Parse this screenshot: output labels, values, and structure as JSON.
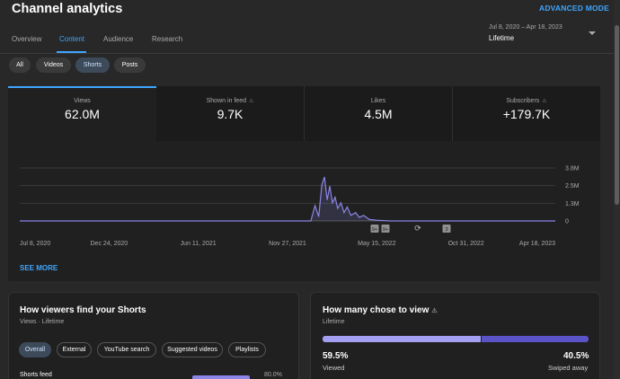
{
  "header": {
    "title": "Channel analytics",
    "advanced_mode": "ADVANCED MODE"
  },
  "tabs": [
    {
      "label": "Overview"
    },
    {
      "label": "Content"
    },
    {
      "label": "Research"
    },
    {
      "label": "Audience"
    }
  ],
  "active_tab": "Content",
  "date_range": {
    "dates": "Jul 8, 2020 – Apr 18, 2023",
    "label": "Lifetime"
  },
  "content_filters": [
    {
      "label": "All"
    },
    {
      "label": "Videos"
    },
    {
      "label": "Shorts"
    },
    {
      "label": "Posts"
    }
  ],
  "active_filter": "Shorts",
  "metrics": [
    {
      "label": "Views",
      "value": "62.0M"
    },
    {
      "label": "Shown in feed",
      "value": "9.7K"
    },
    {
      "label": "Likes",
      "value": "4.5M"
    },
    {
      "label": "Subscribers",
      "value": "+179.7K"
    }
  ],
  "chart_data": {
    "type": "line",
    "series_color": "#8a85e6",
    "x_tick_labels": [
      "Jul 8, 2020",
      "Dec 24, 2020",
      "Jun 11, 2021",
      "Nov 27, 2021",
      "May 15, 2022",
      "Oct 31, 2022",
      "Apr 18, 2023"
    ],
    "y_tick_labels": [
      "3.8M",
      "2.5M",
      "1.3M",
      "0"
    ],
    "ylim": [
      0,
      3800000
    ],
    "grid": true,
    "y_axis_side": "right",
    "x": [
      "2020-07-08",
      "2022-01-10",
      "2022-01-18",
      "2022-01-25",
      "2022-01-31",
      "2022-02-05",
      "2022-02-10",
      "2022-02-15",
      "2022-02-20",
      "2022-02-25",
      "2022-03-02",
      "2022-03-08",
      "2022-03-14",
      "2022-03-20",
      "2022-03-27",
      "2022-04-05",
      "2022-04-12",
      "2022-04-20",
      "2022-05-01",
      "2022-05-15",
      "2022-06-10",
      "2023-04-18"
    ],
    "values": [
      0,
      0,
      1100000,
      300000,
      2600000,
      3150000,
      1500000,
      2500000,
      1300000,
      1700000,
      900000,
      1300000,
      600000,
      1000000,
      400000,
      600000,
      250000,
      400000,
      100000,
      50000,
      0,
      0
    ],
    "markers": [
      "9+",
      "9+",
      "",
      "3"
    ],
    "see_more": "SEE MORE"
  },
  "traffic_card": {
    "title": "How viewers find your Shorts",
    "subtitle": "Views · Lifetime",
    "filters": [
      {
        "label": "Overall"
      },
      {
        "label": "External"
      },
      {
        "label": "YouTube search"
      },
      {
        "label": "Suggested videos"
      },
      {
        "label": "Playlists"
      }
    ],
    "rows": [
      {
        "label": "Shorts feed",
        "value": "80.0%"
      }
    ]
  },
  "viewed_card": {
    "title": "How many chose to view",
    "subtitle": "Lifetime",
    "viewed_pct": "59.5%",
    "viewed_label": "Viewed",
    "swiped_pct": "40.5%",
    "swiped_label": "Swiped away",
    "viewed_fraction": 0.595
  }
}
